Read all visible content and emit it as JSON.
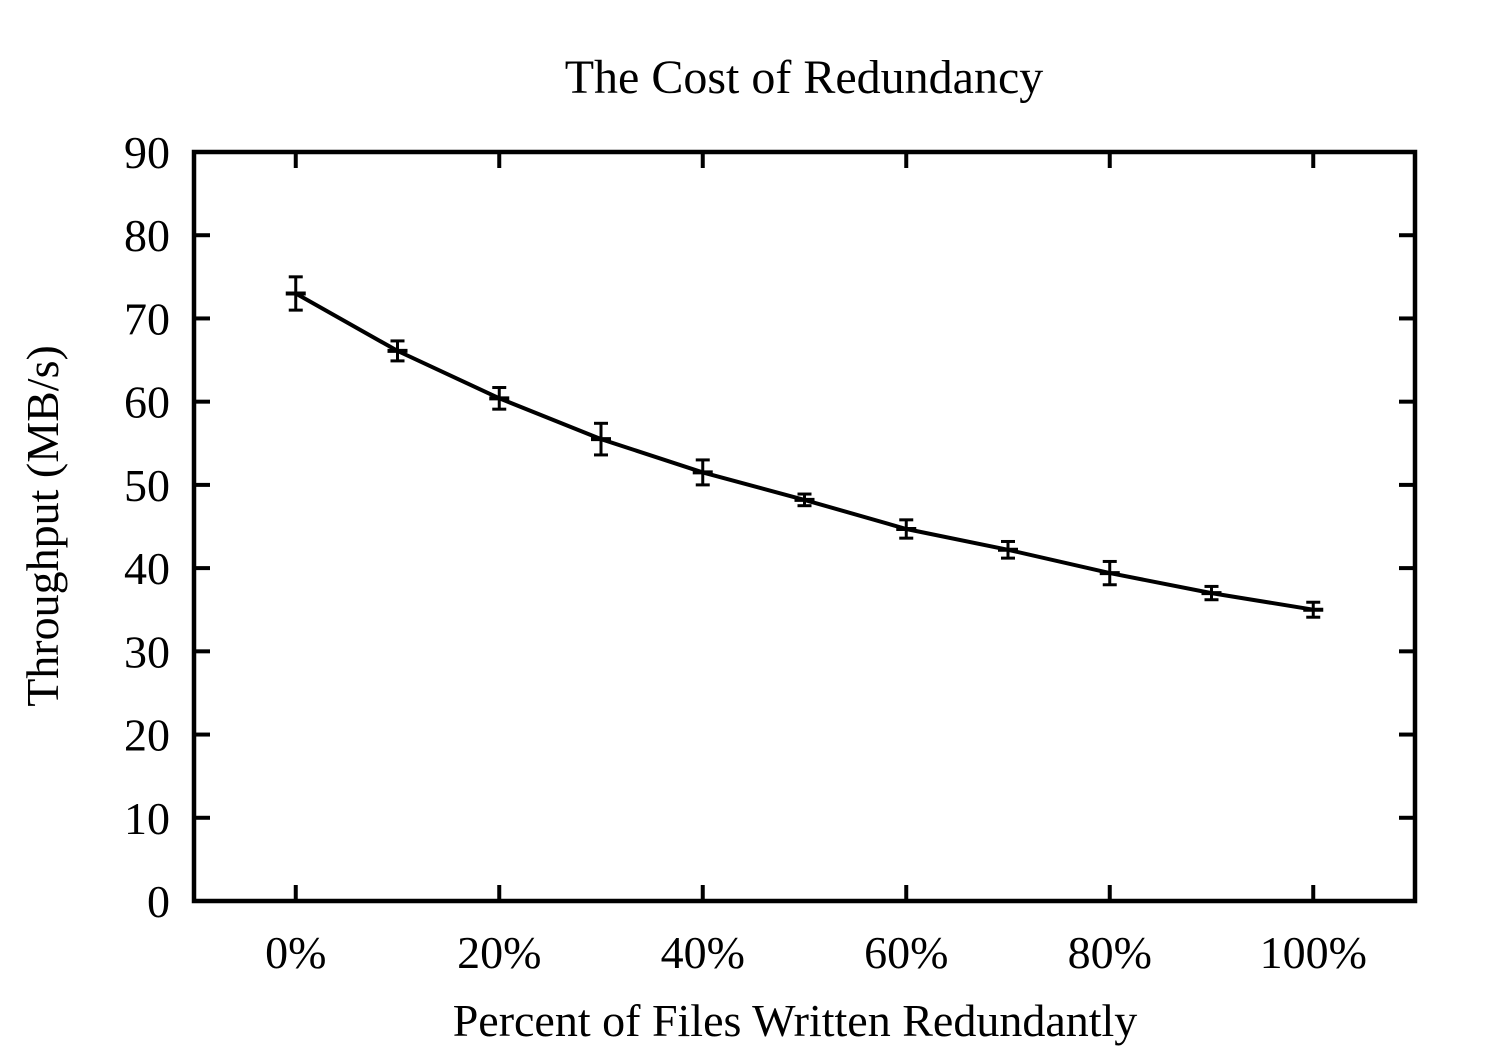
{
  "chart_data": {
    "type": "line",
    "title": "The Cost of Redundancy",
    "xlabel": "Percent of Files Written Redundantly",
    "ylabel": "Throughput (MB/s)",
    "x": [
      0,
      10,
      20,
      30,
      40,
      50,
      60,
      70,
      80,
      90,
      100
    ],
    "series": [
      {
        "name": "throughput",
        "values": [
          73.0,
          66.1,
          60.4,
          55.5,
          51.5,
          48.2,
          44.7,
          42.2,
          39.4,
          37.0,
          35.0
        ],
        "yerr": [
          2.0,
          1.2,
          1.3,
          1.9,
          1.5,
          0.7,
          1.1,
          1.0,
          1.4,
          0.8,
          0.9
        ]
      }
    ],
    "xlim": [
      -10,
      110
    ],
    "ylim": [
      0,
      90
    ],
    "x_tick_values": [
      0,
      20,
      40,
      60,
      80,
      100
    ],
    "x_tick_labels": [
      "0%",
      "20%",
      "40%",
      "60%",
      "80%",
      "100%"
    ],
    "y_tick_values": [
      0,
      10,
      20,
      30,
      40,
      50,
      60,
      70,
      80,
      90
    ],
    "y_tick_labels": [
      "0",
      "10",
      "20",
      "30",
      "40",
      "50",
      "60",
      "70",
      "80",
      "90"
    ],
    "grid": false,
    "legend": "none",
    "marker": "plus-with-errorbars",
    "line_color": "#000000",
    "background_color": "#ffffff"
  }
}
